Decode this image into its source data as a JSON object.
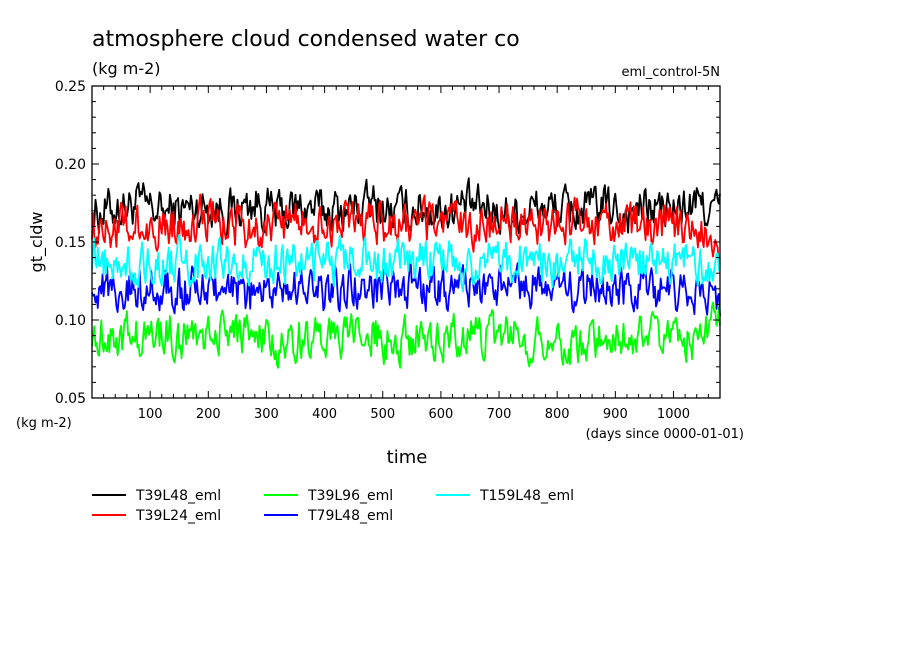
{
  "chart_data": {
    "type": "line",
    "title": "atmosphere cloud condensed water co",
    "subtitle": "(kg m-2)",
    "run_label": "eml_control-5N",
    "xlabel": "time",
    "xunits": "(days since 0000-01-01)",
    "ylabel": "gt_cldw",
    "yunits": "(kg m-2)",
    "xlim": [
      0,
      1080
    ],
    "ylim": [
      0.05,
      0.25
    ],
    "yticks": [
      0.05,
      0.1,
      0.15,
      0.2,
      0.25
    ],
    "ytick_labels": [
      "0.05",
      "0.10",
      "0.15",
      "0.20",
      "0.25"
    ],
    "xticks": [
      100,
      200,
      300,
      400,
      500,
      600,
      700,
      800,
      900,
      1000
    ],
    "xtick_labels": [
      "100",
      "200",
      "300",
      "400",
      "500",
      "600",
      "700",
      "800",
      "900",
      "1000"
    ],
    "grid": false,
    "legend_position": "bottom",
    "series": [
      {
        "name": "T39L48_eml",
        "color": "#000000",
        "x": [
          0,
          40,
          80,
          120,
          160,
          200,
          240,
          280,
          320,
          360,
          400,
          440,
          480,
          520,
          560,
          600,
          640,
          680,
          720,
          760,
          800,
          840,
          880,
          920,
          960,
          1000,
          1040,
          1080
        ],
        "values": [
          0.168,
          0.172,
          0.174,
          0.169,
          0.171,
          0.173,
          0.17,
          0.175,
          0.168,
          0.172,
          0.17,
          0.171,
          0.174,
          0.169,
          0.172,
          0.17,
          0.173,
          0.171,
          0.168,
          0.172,
          0.171,
          0.17,
          0.173,
          0.169,
          0.172,
          0.17,
          0.174,
          0.171
        ]
      },
      {
        "name": "T39L24_eml",
        "color": "#ff0000",
        "x": [
          0,
          40,
          80,
          120,
          160,
          200,
          240,
          280,
          320,
          360,
          400,
          440,
          480,
          520,
          560,
          600,
          640,
          680,
          720,
          760,
          800,
          840,
          880,
          920,
          960,
          1000,
          1040,
          1080
        ],
        "values": [
          0.162,
          0.16,
          0.158,
          0.161,
          0.163,
          0.165,
          0.16,
          0.159,
          0.162,
          0.164,
          0.161,
          0.16,
          0.165,
          0.158,
          0.161,
          0.163,
          0.16,
          0.162,
          0.164,
          0.159,
          0.161,
          0.163,
          0.16,
          0.162,
          0.158,
          0.161,
          0.163,
          0.14
        ]
      },
      {
        "name": "T39L96_eml",
        "color": "#00ff00",
        "x": [
          0,
          40,
          80,
          120,
          160,
          200,
          240,
          280,
          320,
          360,
          400,
          440,
          480,
          520,
          560,
          600,
          640,
          680,
          720,
          760,
          800,
          840,
          880,
          920,
          960,
          1000,
          1040,
          1080
        ],
        "values": [
          0.092,
          0.09,
          0.088,
          0.091,
          0.089,
          0.092,
          0.094,
          0.088,
          0.083,
          0.089,
          0.091,
          0.087,
          0.092,
          0.084,
          0.09,
          0.088,
          0.091,
          0.089,
          0.092,
          0.088,
          0.087,
          0.083,
          0.089,
          0.092,
          0.088,
          0.091,
          0.089,
          0.096
        ]
      },
      {
        "name": "T79L48_eml",
        "color": "#0000ff",
        "x": [
          0,
          40,
          80,
          120,
          160,
          200,
          240,
          280,
          320,
          360,
          400,
          440,
          480,
          520,
          560,
          600,
          640,
          680,
          720,
          760,
          800,
          840,
          880,
          920,
          960,
          1000,
          1040,
          1080
        ],
        "values": [
          0.125,
          0.118,
          0.122,
          0.12,
          0.119,
          0.121,
          0.117,
          0.115,
          0.123,
          0.119,
          0.118,
          0.121,
          0.12,
          0.116,
          0.122,
          0.119,
          0.121,
          0.118,
          0.12,
          0.122,
          0.117,
          0.119,
          0.121,
          0.118,
          0.12,
          0.119,
          0.117,
          0.112
        ]
      },
      {
        "name": "T159L48_eml",
        "color": "#00ffff",
        "x": [
          0,
          40,
          80,
          120,
          160,
          200,
          240,
          280,
          320,
          360,
          400,
          440,
          480,
          520,
          560,
          600,
          640,
          680,
          720,
          760,
          800,
          840,
          880,
          920,
          960,
          1000,
          1040,
          1080
        ],
        "values": [
          0.138,
          0.135,
          0.137,
          0.136,
          0.139,
          0.137,
          0.135,
          0.14,
          0.136,
          0.138,
          0.137,
          0.139,
          0.136,
          0.138,
          0.14,
          0.137,
          0.136,
          0.139,
          0.138,
          0.135,
          0.137,
          0.139,
          0.136,
          0.138,
          0.137,
          0.136,
          0.139,
          0.13
        ]
      }
    ]
  }
}
